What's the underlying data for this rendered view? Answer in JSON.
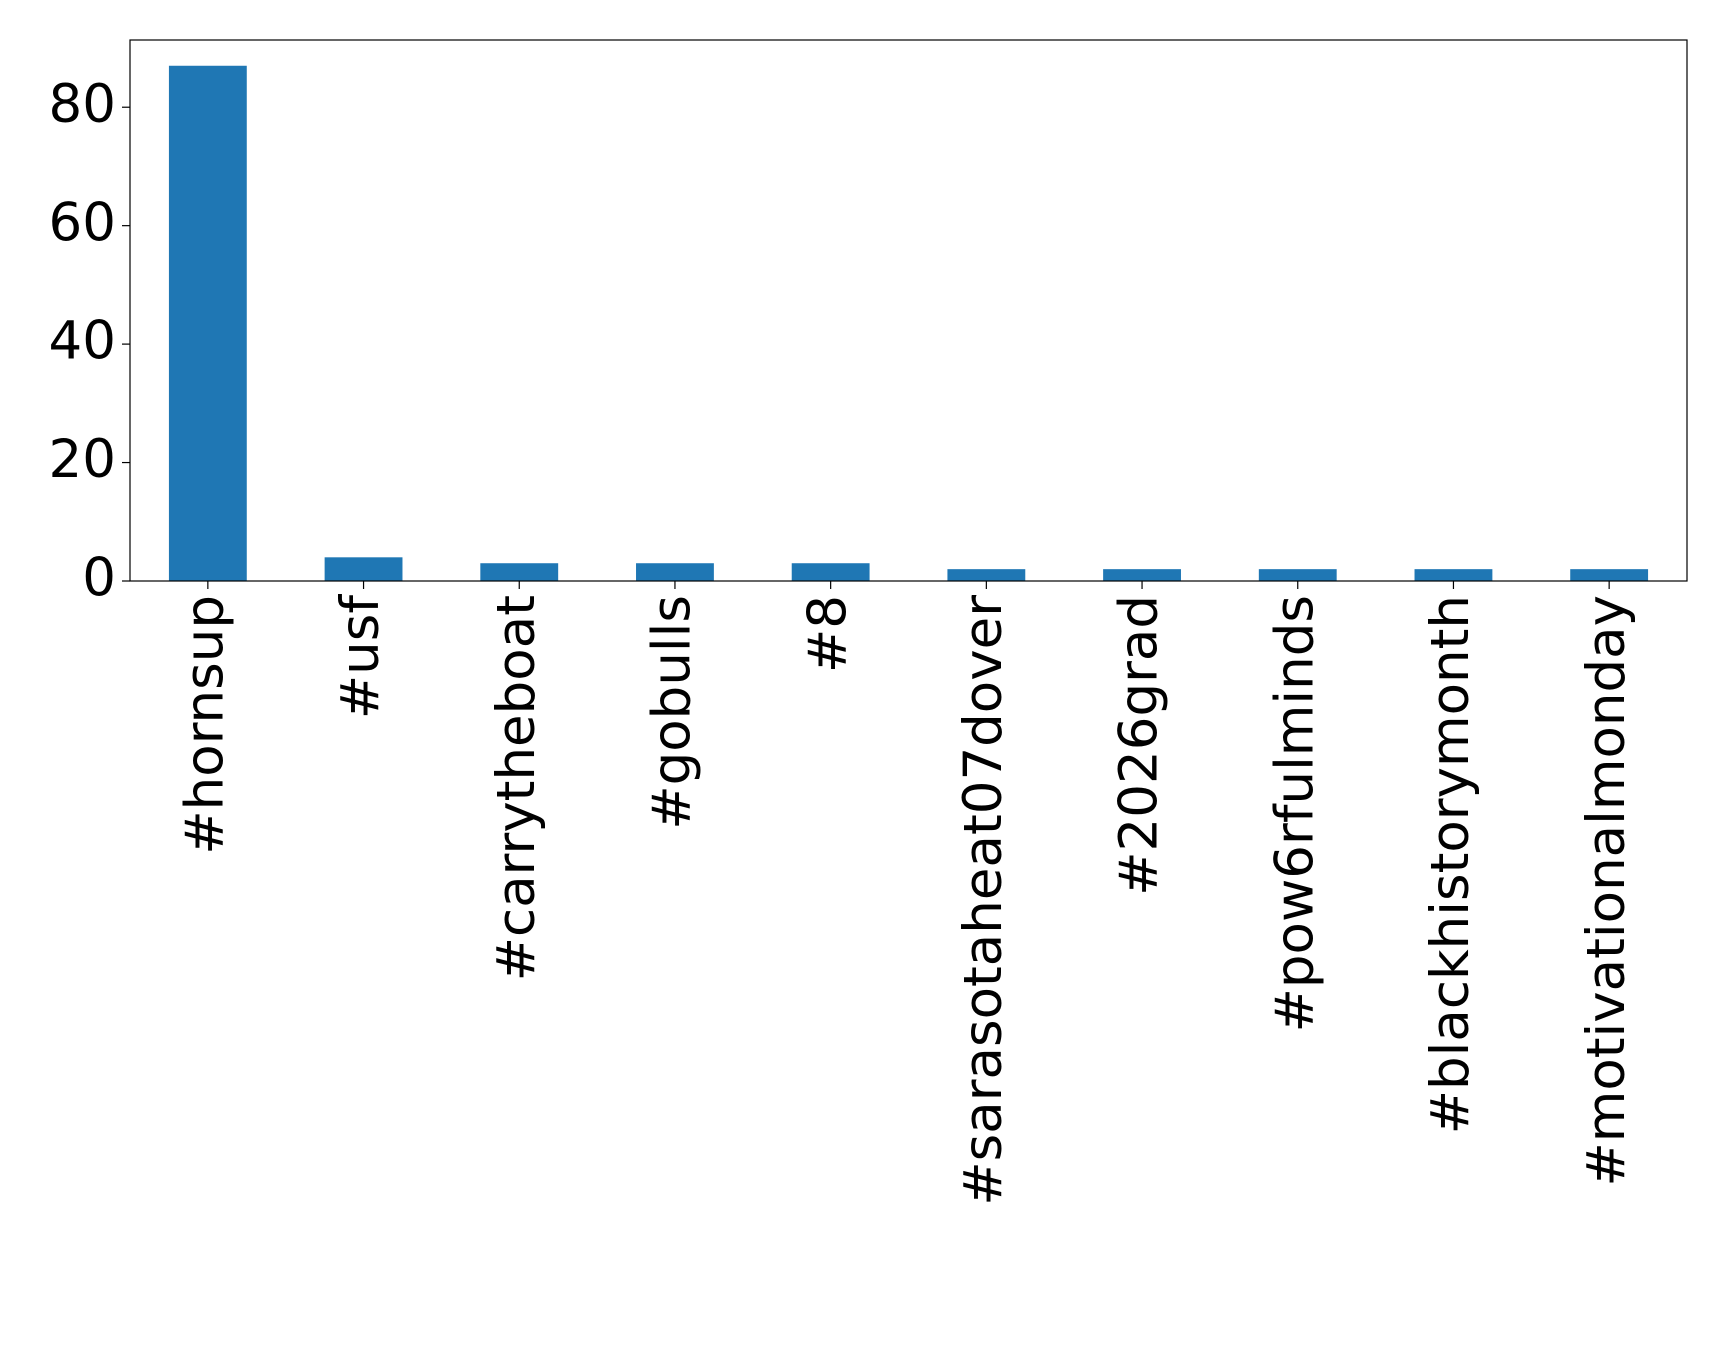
{
  "chart_data": {
    "type": "bar",
    "categories": [
      "#hornsup",
      "#usf",
      "#carrytheboat",
      "#gobulls",
      "#8",
      "#sarasotaheat07dover",
      "#2026grad",
      "#pow6rfulminds",
      "#blackhistorymonth",
      "#motivationalmonday"
    ],
    "values": [
      87,
      4,
      3,
      3,
      3,
      2,
      2,
      2,
      2,
      2
    ],
    "color": "#1f77b4",
    "ylim": [
      0,
      91.35
    ],
    "yticks": [
      0,
      20,
      40,
      60,
      80
    ],
    "grid": false
  }
}
